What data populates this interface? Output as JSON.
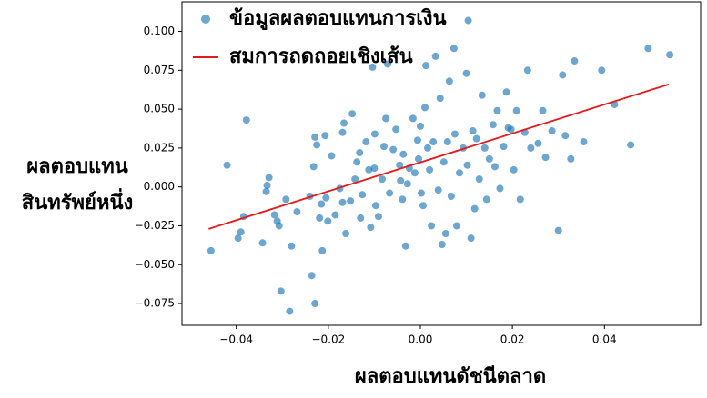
{
  "chart_data": {
    "type": "scatter",
    "xlabel": "ผลตอบแทนดัชนีตลาด",
    "ylabel": [
      "ผลตอบแทน",
      "สินทรัพย์หนึ่ง"
    ],
    "xlim": [
      -0.0518,
      0.0609
    ],
    "ylim": [
      -0.089,
      0.119
    ],
    "xticks": [
      {
        "value": -0.04,
        "label": "−0.04"
      },
      {
        "value": -0.02,
        "label": "−0.02"
      },
      {
        "value": 0,
        "label": "0.00"
      },
      {
        "value": 0.02,
        "label": "0.02"
      },
      {
        "value": 0.04,
        "label": "0.04"
      }
    ],
    "yticks": [
      {
        "value": -0.075,
        "label": "−0.075"
      },
      {
        "value": -0.05,
        "label": "−0.050"
      },
      {
        "value": -0.025,
        "label": "−0.025"
      },
      {
        "value": 0,
        "label": "0.000"
      },
      {
        "value": 0.025,
        "label": "0.025"
      },
      {
        "value": 0.05,
        "label": "0.050"
      },
      {
        "value": 0.075,
        "label": "0.075"
      },
      {
        "value": 0.1,
        "label": "0.100"
      }
    ],
    "grid": false,
    "legend": "upper left",
    "series": [
      {
        "name": "ข้อมูลผลตอบแทนการเงิน",
        "kind": "scatter",
        "color": "#1f77b4",
        "x": [
          -0.0455,
          -0.042,
          -0.0378,
          -0.0384,
          -0.039,
          -0.0396,
          -0.0343,
          -0.0329,
          -0.0333,
          -0.0335,
          -0.0317,
          -0.0311,
          -0.0307,
          -0.0303,
          -0.0292,
          -0.028,
          -0.0284,
          -0.0268,
          -0.024,
          -0.0236,
          -0.0229,
          -0.0232,
          -0.0229,
          -0.0225,
          -0.0219,
          -0.0215,
          -0.0213,
          -0.0205,
          -0.0201,
          -0.0207,
          -0.0193,
          -0.0185,
          -0.0175,
          -0.0169,
          -0.0166,
          -0.0169,
          -0.0162,
          -0.0152,
          -0.0148,
          -0.0142,
          -0.0138,
          -0.0132,
          -0.013,
          -0.0126,
          -0.0118,
          -0.0112,
          -0.0108,
          -0.0104,
          -0.01,
          -0.0099,
          -0.0097,
          -0.0091,
          -0.0083,
          -0.0079,
          -0.0075,
          -0.0071,
          -0.0067,
          -0.0059,
          -0.0053,
          -0.0045,
          -0.0043,
          -0.0039,
          -0.0037,
          -0.0032,
          -0.0028,
          -0.0024,
          -0.0016,
          -0.0012,
          -0.0006,
          -0.0004,
          0.0,
          0.0002,
          0.0006,
          0.001,
          0.0012,
          0.0016,
          0.002,
          0.0024,
          0.0028,
          0.0033,
          0.0039,
          0.0043,
          0.0047,
          0.0051,
          0.0055,
          0.0059,
          0.0063,
          0.0067,
          0.0073,
          0.0075,
          0.0079,
          0.0085,
          0.0093,
          0.01,
          0.0102,
          0.0104,
          0.011,
          0.0114,
          0.0118,
          0.0122,
          0.0128,
          0.0134,
          0.014,
          0.0144,
          0.015,
          0.0158,
          0.0162,
          0.0167,
          0.0173,
          0.0181,
          0.0187,
          0.0191,
          0.0197,
          0.0203,
          0.0209,
          0.0217,
          0.0227,
          0.0233,
          0.024,
          0.0256,
          0.0266,
          0.0272,
          0.0286,
          0.03,
          0.0309,
          0.0315,
          0.0327,
          0.0335,
          0.0355,
          0.0394,
          0.0422,
          0.0457,
          0.0495,
          0.0542
        ],
        "values": [
          -0.041,
          0.014,
          0.043,
          -0.019,
          -0.029,
          -0.033,
          -0.036,
          0.006,
          0.001,
          -0.003,
          -0.018,
          -0.022,
          -0.025,
          -0.067,
          -0.008,
          -0.038,
          -0.08,
          -0.016,
          -0.006,
          -0.057,
          -0.075,
          0.013,
          0.032,
          0.027,
          -0.02,
          -0.011,
          -0.041,
          -0.007,
          -0.022,
          0.033,
          0.02,
          -0.018,
          -0.001,
          -0.01,
          0.041,
          0.035,
          -0.03,
          -0.009,
          0.047,
          0.005,
          0.016,
          0.022,
          -0.02,
          -0.005,
          0.029,
          0.011,
          -0.026,
          0.077,
          0.012,
          0.034,
          -0.012,
          -0.019,
          0.005,
          0.026,
          0.044,
          0.079,
          -0.004,
          0.024,
          0.037,
          0.014,
          0.004,
          -0.008,
          0.021,
          -0.038,
          0.002,
          0.012,
          0.044,
          0.009,
          0.03,
          0.018,
          0.039,
          -0.004,
          -0.012,
          0.051,
          0.078,
          0.025,
          0.011,
          -0.025,
          0.029,
          0.084,
          -0.002,
          0.057,
          -0.037,
          0.016,
          -0.03,
          0.029,
          0.068,
          -0.006,
          0.089,
          0.034,
          -0.025,
          0.009,
          0.025,
          0.073,
          0.014,
          0.107,
          -0.033,
          0.036,
          -0.014,
          0.031,
          0.005,
          0.059,
          0.025,
          -0.008,
          0.018,
          0.04,
          0.013,
          0.049,
          -0.001,
          0.026,
          0.061,
          0.038,
          0.037,
          0.011,
          0.049,
          -0.008,
          0.035,
          0.075,
          0.025,
          0.028,
          0.049,
          0.019,
          0.036,
          -0.028,
          0.072,
          0.033,
          0.018,
          0.081,
          0.029,
          0.075,
          0.053,
          0.027,
          0.089,
          0.085
        ]
      },
      {
        "name": "สมการถดถอยเชิงเส้น",
        "kind": "line",
        "color": "#e41a1c",
        "x": [
          -0.046,
          0.054
        ],
        "values": [
          -0.027,
          0.066
        ]
      }
    ]
  }
}
